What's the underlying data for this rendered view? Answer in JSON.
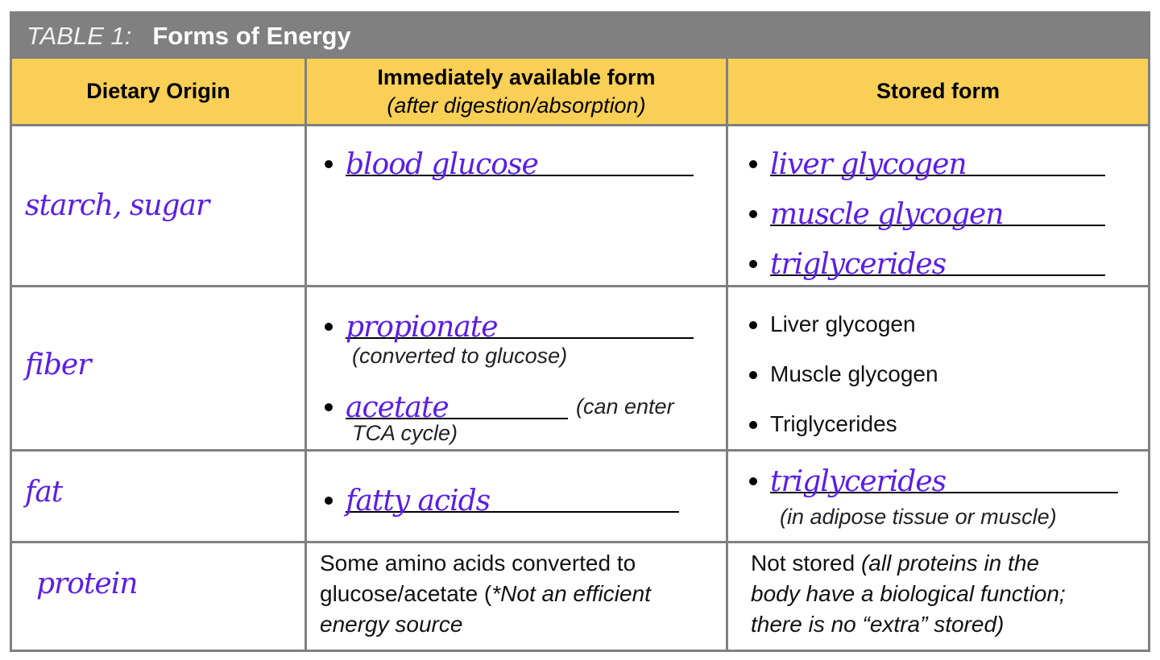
{
  "table": {
    "label": "TABLE 1:",
    "title": "Forms of Energy",
    "headers": {
      "origin": "Dietary Origin",
      "immediate": "Immediately available form",
      "immediate_sub": "(after digestion/absorption)",
      "stored": "Stored form"
    },
    "rows": [
      {
        "origin": "starch, sugar",
        "immediate": [
          "blood glucose"
        ],
        "stored": [
          "liver glycogen",
          "muscle glycogen",
          "triglycerides"
        ]
      },
      {
        "origin": "fiber",
        "immediate": [
          "propionate",
          "acetate"
        ],
        "immediate_notes": [
          "(converted to glucose)",
          "(can enter",
          "TCA cycle)"
        ],
        "stored": [
          "Liver glycogen",
          "Muscle glycogen",
          "Triglycerides"
        ]
      },
      {
        "origin": "fat",
        "immediate": [
          "fatty acids"
        ],
        "stored": [
          "triglycerides"
        ],
        "stored_note": "(in adipose tissue or muscle)"
      },
      {
        "origin": "protein",
        "immediate_text": {
          "line1": "Some amino acids converted to",
          "line2_plain": "glucose/acetate (",
          "line2_italic": "*Not an efficient",
          "line3_italic": "energy source"
        },
        "stored_text": {
          "line1_plain": "Not stored ",
          "line1_italic": "(all proteins in the",
          "line2_italic": "body have a biological function;",
          "line3_italic": "there is no “extra” stored)"
        }
      }
    ]
  }
}
